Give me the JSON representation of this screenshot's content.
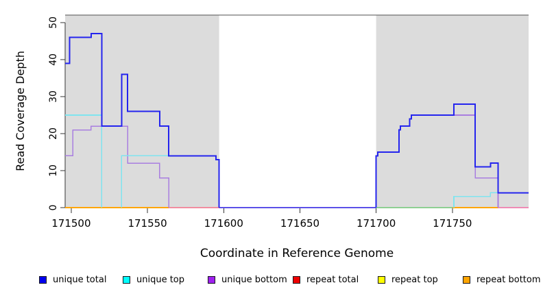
{
  "chart_data": {
    "type": "line",
    "subtype": "step-coverage",
    "title": "",
    "xlabel": "Coordinate in Reference Genome",
    "ylabel": "Read Coverage Depth",
    "xlim": [
      171496,
      171800
    ],
    "ylim": [
      0,
      52
    ],
    "x_ticks": [
      "171500",
      "171550",
      "171600",
      "171650",
      "171700",
      "171750"
    ],
    "x_tick_values": [
      171500,
      171550,
      171600,
      171650,
      171700,
      171750
    ],
    "y_ticks": [
      "0",
      "10",
      "20",
      "30",
      "40",
      "50"
    ],
    "y_tick_values": [
      0,
      10,
      20,
      30,
      40,
      50
    ],
    "grid": false,
    "legend_position": "bottom",
    "shade_color": "#dcdcdc",
    "shaded_regions": [
      {
        "from": 171496,
        "to": 171597
      },
      {
        "from": 171700,
        "to": 171800
      }
    ],
    "series": [
      {
        "name": "unique total",
        "color": "#2424ee",
        "line_width": 2,
        "segments": [
          [
            [
              171496,
              39
            ],
            [
              171499,
              46
            ],
            [
              171513,
              47
            ],
            [
              171520,
              22
            ],
            [
              171533,
              36
            ],
            [
              171537,
              26
            ],
            [
              171558,
              22
            ],
            [
              171564,
              14
            ],
            [
              171595,
              13
            ],
            [
              171597,
              0
            ]
          ],
          [
            [
              171700,
              0
            ],
            [
              171700,
              14
            ],
            [
              171701,
              15
            ],
            [
              171715,
              21
            ],
            [
              171716,
              22
            ],
            [
              171722,
              24
            ],
            [
              171723,
              25
            ],
            [
              171751,
              28
            ],
            [
              171765,
              11
            ],
            [
              171775,
              12
            ],
            [
              171780,
              4
            ],
            [
              171800,
              4
            ]
          ]
        ]
      },
      {
        "name": "unique top",
        "color": "#7fe4ef",
        "line_width": 1.6,
        "segments": [
          [
            [
              171496,
              25
            ],
            [
              171520,
              0
            ]
          ],
          [
            [
              171533,
              0
            ],
            [
              171533,
              14
            ],
            [
              171595,
              13
            ],
            [
              171597,
              0
            ]
          ],
          [
            [
              171751,
              0
            ],
            [
              171751,
              3
            ],
            [
              171775,
              4
            ],
            [
              171800,
              4
            ]
          ]
        ]
      },
      {
        "name": "unique bottom",
        "color": "#a97ee0",
        "line_width": 1.6,
        "segments": [
          [
            [
              171496,
              14
            ],
            [
              171501,
              21
            ],
            [
              171513,
              22
            ],
            [
              171537,
              12
            ],
            [
              171558,
              8
            ],
            [
              171564,
              0
            ]
          ],
          [
            [
              171700,
              0
            ],
            [
              171700,
              14
            ],
            [
              171701,
              15
            ],
            [
              171715,
              21
            ],
            [
              171716,
              22
            ],
            [
              171722,
              24
            ],
            [
              171723,
              25
            ],
            [
              171765,
              8
            ],
            [
              171780,
              0
            ]
          ]
        ]
      },
      {
        "name": "repeat total",
        "color": "#ee0000",
        "line_width": 1.6,
        "segments": [
          [
            [
              171496,
              0
            ],
            [
              171800,
              0
            ]
          ]
        ]
      },
      {
        "name": "repeat top",
        "color": "#ffff00",
        "line_width": 1.6,
        "segments": [
          [
            [
              171496,
              0
            ],
            [
              171800,
              0
            ]
          ]
        ]
      },
      {
        "name": "repeat bottom",
        "color": "#ffa500",
        "line_width": 1.6,
        "segments": [
          [
            [
              171496,
              0
            ],
            [
              171800,
              0
            ]
          ]
        ]
      }
    ],
    "zero_line_segments": [
      {
        "from": 171496,
        "to": 171564,
        "color": "#ffa500"
      },
      {
        "from": 171564,
        "to": 171597,
        "color": "#f28da0"
      },
      {
        "from": 171597,
        "to": 171700,
        "color": "#5b50e8"
      },
      {
        "from": 171700,
        "to": 171750,
        "color": "#8ecf92"
      },
      {
        "from": 171750,
        "to": 171780,
        "color": "#ffa500"
      },
      {
        "from": 171780,
        "to": 171800,
        "color": "#ef8bb5"
      }
    ],
    "legend": [
      {
        "label": "unique total",
        "color": "#0000ee"
      },
      {
        "label": "unique top",
        "color": "#00ffff"
      },
      {
        "label": "unique bottom",
        "color": "#a020f0"
      },
      {
        "label": "repeat total",
        "color": "#ee0000"
      },
      {
        "label": "repeat top",
        "color": "#ffff00"
      },
      {
        "label": "repeat bottom",
        "color": "#ffa500"
      }
    ],
    "axis_color": "#333333",
    "top_border_color": "#4f4f4f"
  }
}
